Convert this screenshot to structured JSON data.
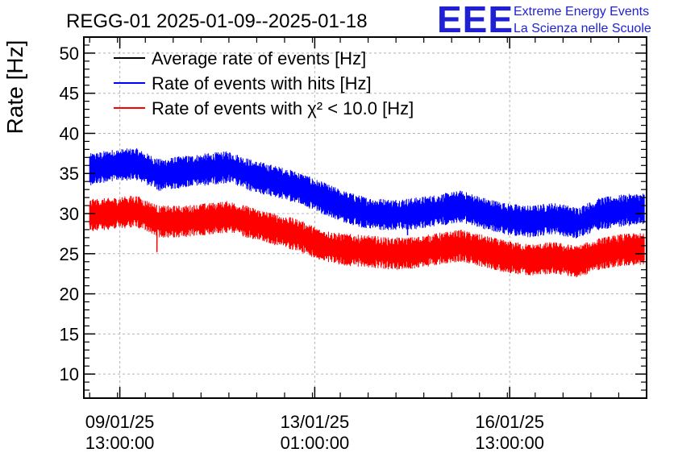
{
  "chart_data": {
    "type": "line",
    "title": "REGG-01 2025-01-09--2025-01-18",
    "ylabel": "Rate [Hz]",
    "xlabel": "",
    "ylim": [
      7,
      52
    ],
    "yticks": [
      10,
      15,
      20,
      25,
      30,
      35,
      40,
      45,
      50
    ],
    "x_unit": "hours since 2025-01-09 00:00",
    "xlim": [
      -2.5,
      240
    ],
    "xticks": [
      {
        "x": 13,
        "line1": "09/01/25",
        "line2": "13:00:00"
      },
      {
        "x": 97,
        "line1": "13/01/25",
        "line2": "01:00:00"
      },
      {
        "x": 181,
        "line1": "16/01/25",
        "line2": "13:00:00"
      }
    ],
    "grid": true,
    "legend_position": "top-left",
    "series": [
      {
        "name": "Average rate of events [Hz]",
        "color": "#000000",
        "x": [],
        "values": []
      },
      {
        "name": "Rate of events with hits [Hz]",
        "color": "#0000ff",
        "x": [
          0,
          10,
          20,
          30,
          40,
          50,
          60,
          70,
          80,
          90,
          100,
          110,
          120,
          130,
          140,
          150,
          160,
          170,
          180,
          190,
          200,
          210,
          220,
          230,
          239
        ],
        "values": [
          35.5,
          36.0,
          36.2,
          34.8,
          35.2,
          35.5,
          35.8,
          34.7,
          34.0,
          33.2,
          32.0,
          30.8,
          30.0,
          29.8,
          30.0,
          30.4,
          30.9,
          30.0,
          29.3,
          29.0,
          29.4,
          28.8,
          30.0,
          30.4,
          30.6
        ]
      },
      {
        "name": "Rate of events with χ² < 10.0 [Hz]",
        "color": "#ff0000",
        "x": [
          0,
          10,
          20,
          30,
          40,
          50,
          60,
          70,
          80,
          90,
          100,
          110,
          120,
          130,
          140,
          150,
          160,
          170,
          180,
          190,
          200,
          210,
          220,
          230,
          239
        ],
        "values": [
          29.8,
          30.0,
          30.3,
          29.0,
          29.0,
          29.3,
          29.6,
          28.8,
          28.0,
          27.3,
          26.0,
          25.5,
          25.3,
          25.0,
          25.1,
          25.6,
          26.0,
          25.3,
          24.6,
          24.2,
          24.5,
          24.0,
          25.0,
          25.5,
          25.6
        ]
      }
    ],
    "annotations": [
      {
        "series": 2,
        "x": 29,
        "value": 25.2,
        "note": "dip"
      },
      {
        "series": 1,
        "x": 137,
        "value": 27.3,
        "note": "dip"
      }
    ]
  },
  "logo": {
    "mark": "EEE",
    "line1": "Extreme Energy Events",
    "line2": "La Scienza nelle Scuole"
  }
}
